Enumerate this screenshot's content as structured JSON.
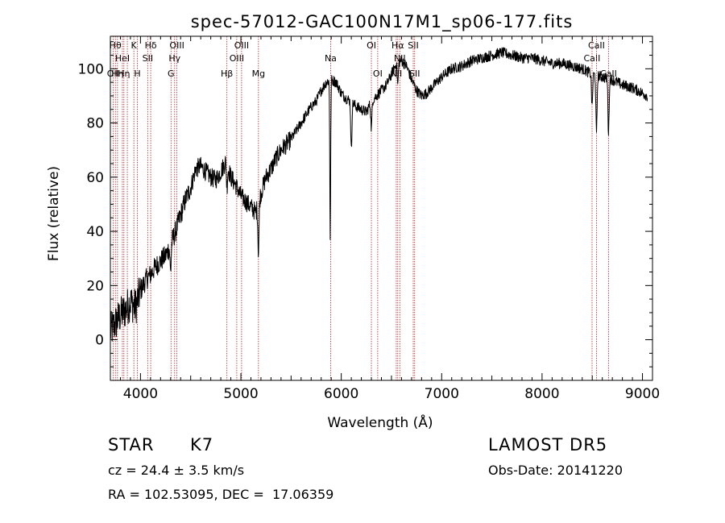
{
  "chart_data": {
    "type": "line",
    "title": "spec-57012-GAC100N17M1_sp06-177.fits",
    "xlabel": "Wavelength (Å)",
    "ylabel": "Flux (relative)",
    "xlim": [
      3700,
      9100
    ],
    "ylim": [
      -15,
      112
    ],
    "x_ticks": [
      4000,
      5000,
      6000,
      7000,
      8000,
      9000
    ],
    "y_ticks": [
      0,
      20,
      40,
      60,
      80,
      100
    ],
    "line_color": "#000000",
    "marker_color": "#b22222",
    "spectrum_anchors": {
      "x": [
        3700,
        3750,
        3800,
        3850,
        3900,
        3950,
        4000,
        4050,
        4100,
        4150,
        4200,
        4250,
        4300,
        4350,
        4400,
        4450,
        4500,
        4550,
        4600,
        4650,
        4700,
        4750,
        4800,
        4850,
        4900,
        4950,
        5000,
        5050,
        5100,
        5150,
        5200,
        5250,
        5300,
        5350,
        5400,
        5450,
        5500,
        5550,
        5600,
        5650,
        5700,
        5750,
        5800,
        5850,
        5900,
        5950,
        6000,
        6050,
        6100,
        6150,
        6200,
        6250,
        6300,
        6350,
        6400,
        6450,
        6500,
        6550,
        6600,
        6650,
        6700,
        6750,
        6800,
        6850,
        6900,
        6950,
        7000,
        7100,
        7200,
        7300,
        7400,
        7500,
        7600,
        7700,
        7800,
        7900,
        8000,
        8100,
        8200,
        8300,
        8400,
        8500,
        8600,
        8700,
        8800,
        8900,
        9000,
        9050
      ],
      "y": [
        3,
        6,
        9,
        11,
        14,
        12,
        18,
        22,
        24,
        27,
        29,
        31,
        35,
        40,
        46,
        52,
        56,
        63,
        64,
        62,
        60,
        59,
        62,
        66,
        60,
        57,
        53,
        51,
        49,
        47,
        54,
        60,
        63,
        67,
        70,
        72,
        74,
        77,
        80,
        83,
        86,
        88,
        92,
        95,
        96,
        95,
        91,
        89,
        88,
        86,
        85,
        84,
        88,
        90,
        92,
        94,
        98,
        102,
        103,
        101,
        96,
        92,
        90,
        91,
        93,
        95,
        97,
        100,
        101,
        103,
        104,
        105,
        106,
        105,
        104,
        104,
        103,
        102,
        102,
        101,
        100,
        98,
        97,
        96,
        94,
        93,
        91,
        90
      ]
    },
    "absorption_dips": [
      {
        "x": 4300,
        "depth": 10
      },
      {
        "x": 4861,
        "depth": 8
      },
      {
        "x": 5175,
        "depth": 18
      },
      {
        "x": 5890,
        "depth": 58
      },
      {
        "x": 6100,
        "depth": 18
      },
      {
        "x": 6300,
        "depth": 10
      },
      {
        "x": 6563,
        "depth": 8
      },
      {
        "x": 8498,
        "depth": 12
      },
      {
        "x": 8542,
        "depth": 22
      },
      {
        "x": 8662,
        "depth": 20
      }
    ],
    "line_markers": [
      {
        "x": 3727,
        "label": "OII",
        "row": 3
      },
      {
        "x": 3750,
        "label": "Hθ",
        "row": 1
      },
      {
        "x": 3771,
        "label": "Hη",
        "row": 3
      },
      {
        "x": 3820,
        "label": "HeI",
        "row": 2
      },
      {
        "x": 3835,
        "label": "Hη",
        "row": 3
      },
      {
        "x": 3869,
        "label": "",
        "row": 0
      },
      {
        "x": 3934,
        "label": "K",
        "row": 1
      },
      {
        "x": 3969,
        "label": "H",
        "row": 3
      },
      {
        "x": 4072,
        "label": "SII",
        "row": 2
      },
      {
        "x": 4102,
        "label": "Hδ",
        "row": 1
      },
      {
        "x": 4304,
        "label": "G",
        "row": 3
      },
      {
        "x": 4340,
        "label": "Hγ",
        "row": 2
      },
      {
        "x": 4363,
        "label": "OIII",
        "row": 1
      },
      {
        "x": 4861,
        "label": "Hβ",
        "row": 3
      },
      {
        "x": 4959,
        "label": "OIII",
        "row": 2
      },
      {
        "x": 5007,
        "label": "OIII",
        "row": 1
      },
      {
        "x": 5175,
        "label": "Mg",
        "row": 3
      },
      {
        "x": 5894,
        "label": "Na",
        "row": 2
      },
      {
        "x": 6300,
        "label": "OI",
        "row": 1
      },
      {
        "x": 6363,
        "label": "OI",
        "row": 3
      },
      {
        "x": 6548,
        "label": "NII",
        "row": 3
      },
      {
        "x": 6563,
        "label": "Hα",
        "row": 1
      },
      {
        "x": 6583,
        "label": "NII",
        "row": 2
      },
      {
        "x": 6717,
        "label": "SII",
        "row": 1
      },
      {
        "x": 6731,
        "label": "SII",
        "row": 3
      },
      {
        "x": 8498,
        "label": "CaII",
        "row": 2
      },
      {
        "x": 8542,
        "label": "CaII",
        "row": 1
      },
      {
        "x": 8662,
        "label": "CaII",
        "row": 3
      }
    ]
  },
  "footer": {
    "object_class": "STAR",
    "subclass": "K7",
    "survey": "LAMOST DR5",
    "redshift_line": "cz = 24.4 ± 3.5 km/s",
    "obs_date_line": "Obs-Date: 20141220",
    "coords_line": "RA = 102.53095, DEC =  17.06359"
  }
}
